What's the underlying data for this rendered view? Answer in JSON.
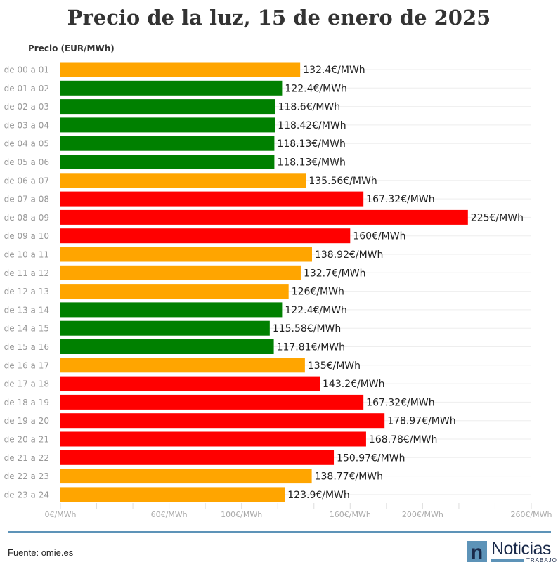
{
  "title": "Precio de la luz, 15 de enero de 2025",
  "footer": {
    "source": "Fuente: omie.es",
    "logo_text": "Noticias",
    "logo_sub": "TRABAJO"
  },
  "colors": {
    "low": "#008000",
    "mid": "#FFA500",
    "high": "#FF0000"
  },
  "chart_data": {
    "type": "bar",
    "orientation": "horizontal",
    "ylabel": "Precio (EUR/MWh)",
    "categories": [
      "de 00 a 01",
      "de 01 a 02",
      "de 02 a 03",
      "de 03 a 04",
      "de 04 a 05",
      "de 05 a 06",
      "de 06 a 07",
      "de 07 a 08",
      "de 08 a 09",
      "de 09 a 10",
      "de 10 a 11",
      "de 11 a 12",
      "de 12 a 13",
      "de 13 a 14",
      "de 14 a 15",
      "de 15 a 16",
      "de 16 a 17",
      "de 17 a 18",
      "de 18 a 19",
      "de 19 a 20",
      "de 20 a 21",
      "de 21 a 22",
      "de 22 a 23",
      "de 23 a 24"
    ],
    "values": [
      132.4,
      122.4,
      118.6,
      118.42,
      118.13,
      118.13,
      135.56,
      167.32,
      225,
      160,
      138.92,
      132.7,
      126,
      122.4,
      115.58,
      117.81,
      135,
      143.2,
      167.32,
      178.97,
      168.78,
      150.97,
      138.77,
      123.9
    ],
    "data_labels": [
      "132.4€/MWh",
      "122.4€/MWh",
      "118.6€/MWh",
      "118.42€/MWh",
      "118.13€/MWh",
      "118.13€/MWh",
      "135.56€/MWh",
      "167.32€/MWh",
      "225€/MWh",
      "160€/MWh",
      "138.92€/MWh",
      "132.7€/MWh",
      "126€/MWh",
      "122.4€/MWh",
      "115.58€/MWh",
      "117.81€/MWh",
      "135€/MWh",
      "143.2€/MWh",
      "167.32€/MWh",
      "178.97€/MWh",
      "168.78€/MWh",
      "150.97€/MWh",
      "138.77€/MWh",
      "123.9€/MWh"
    ],
    "bar_colors": [
      "mid",
      "low",
      "low",
      "low",
      "low",
      "low",
      "mid",
      "high",
      "high",
      "high",
      "mid",
      "mid",
      "mid",
      "low",
      "low",
      "low",
      "mid",
      "high",
      "high",
      "high",
      "high",
      "high",
      "mid",
      "mid"
    ],
    "xlim": [
      0,
      260
    ],
    "x_ticks": [
      0,
      20,
      40,
      60,
      80,
      100,
      120,
      140,
      160,
      180,
      200,
      220,
      240,
      260
    ],
    "x_tick_labels": [
      {
        "value": 0,
        "label": "0€/MWh"
      },
      {
        "value": 60,
        "label": "60€/MWh"
      },
      {
        "value": 100,
        "label": "100€/MWh"
      },
      {
        "value": 160,
        "label": "160€/MWh"
      },
      {
        "value": 200,
        "label": "200€/MWh"
      },
      {
        "value": 260,
        "label": "260€/MWh"
      }
    ],
    "grid": true
  }
}
